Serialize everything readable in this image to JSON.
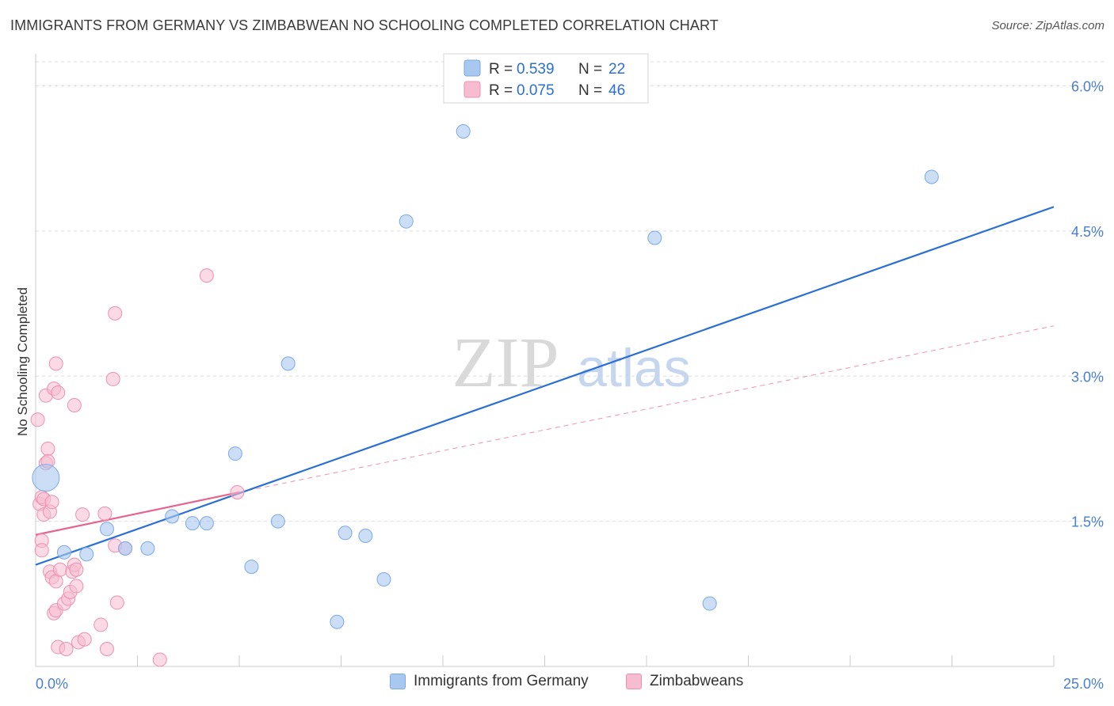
{
  "header": {
    "title": "IMMIGRANTS FROM GERMANY VS ZIMBABWEAN NO SCHOOLING COMPLETED CORRELATION CHART",
    "source": "Source: ZipAtlas.com"
  },
  "watermark": {
    "zip": "ZIP",
    "atlas": "atlas"
  },
  "colors": {
    "blue_fill": "#a9c8f0",
    "blue_stroke": "#7aaae6",
    "blue_line": "#2a6fd4",
    "pink_fill": "#f7bcd0",
    "pink_stroke": "#ee8fb0",
    "pink_line": "#e5658f",
    "axis_label": "#4a7fd0",
    "grid": "#dddddd"
  },
  "legend": {
    "rows": [
      {
        "r_label": "R = ",
        "r_value": "0.539",
        "n_label": "N = ",
        "n_value": "22"
      },
      {
        "r_label": "R = ",
        "r_value": "0.075",
        "n_label": "N = ",
        "n_value": "46"
      }
    ]
  },
  "chart_data": {
    "type": "scatter",
    "title": "IMMIGRANTS FROM GERMANY VS ZIMBABWEAN NO SCHOOLING COMPLETED CORRELATION CHART",
    "xlabel": "",
    "ylabel": "No Schooling Completed",
    "xlim": [
      0,
      25
    ],
    "ylim": [
      0,
      6.25
    ],
    "x_tick_labels": [
      "0.0%",
      "25.0%"
    ],
    "y_ticks": [
      1.5,
      3.0,
      4.5,
      6.0
    ],
    "y_tick_labels": [
      "1.5%",
      "3.0%",
      "4.5%",
      "6.0%"
    ],
    "series": [
      {
        "name": "Immigrants from Germany",
        "color": "blue",
        "R": 0.539,
        "N": 22,
        "trend": {
          "x0": 0,
          "y0": 1.05,
          "x1": 25,
          "y1": 4.75
        },
        "points": [
          [
            0.25,
            1.95,
            "large"
          ],
          [
            0.7,
            1.18
          ],
          [
            1.25,
            1.16
          ],
          [
            1.75,
            1.42
          ],
          [
            2.2,
            1.22
          ],
          [
            2.75,
            1.22
          ],
          [
            3.35,
            1.55
          ],
          [
            3.85,
            1.48
          ],
          [
            4.2,
            1.48
          ],
          [
            4.9,
            2.2
          ],
          [
            5.3,
            1.03
          ],
          [
            5.95,
            1.5
          ],
          [
            6.2,
            3.13
          ],
          [
            7.4,
            0.46
          ],
          [
            7.6,
            1.38
          ],
          [
            8.1,
            1.35
          ],
          [
            8.55,
            0.9
          ],
          [
            9.1,
            4.6
          ],
          [
            10.5,
            5.53
          ],
          [
            15.2,
            4.43
          ],
          [
            16.55,
            0.65
          ],
          [
            22.0,
            5.06
          ]
        ]
      },
      {
        "name": "Zimbabweans",
        "color": "pink",
        "R": 0.075,
        "N": 46,
        "trend_solid": {
          "x0": 0,
          "y0": 1.36,
          "x1": 5.0,
          "y1": 1.8
        },
        "trend_dashed": {
          "x0": 5.0,
          "y0": 1.8,
          "x1": 25,
          "y1": 3.52
        },
        "points": [
          [
            0.05,
            2.55
          ],
          [
            0.1,
            1.68
          ],
          [
            0.15,
            1.3
          ],
          [
            0.15,
            1.2
          ],
          [
            0.15,
            1.75
          ],
          [
            0.2,
            1.73
          ],
          [
            0.2,
            1.57
          ],
          [
            0.25,
            2.8
          ],
          [
            0.25,
            2.1
          ],
          [
            0.3,
            2.25
          ],
          [
            0.3,
            2.12
          ],
          [
            0.35,
            1.6
          ],
          [
            0.35,
            0.98
          ],
          [
            0.4,
            1.7
          ],
          [
            0.4,
            0.92
          ],
          [
            0.45,
            2.87
          ],
          [
            0.45,
            0.55
          ],
          [
            0.5,
            3.13
          ],
          [
            0.5,
            0.58
          ],
          [
            0.5,
            0.88
          ],
          [
            0.55,
            2.83
          ],
          [
            0.55,
            0.2
          ],
          [
            0.6,
            1.0
          ],
          [
            0.7,
            0.65
          ],
          [
            0.75,
            0.18
          ],
          [
            0.8,
            0.7
          ],
          [
            0.85,
            0.77
          ],
          [
            0.9,
            0.98
          ],
          [
            0.95,
            1.05
          ],
          [
            0.95,
            2.7
          ],
          [
            1.0,
            1.0
          ],
          [
            1.0,
            0.83
          ],
          [
            1.05,
            0.25
          ],
          [
            1.15,
            1.57
          ],
          [
            1.2,
            0.28
          ],
          [
            1.6,
            0.43
          ],
          [
            1.7,
            1.58
          ],
          [
            1.75,
            0.18
          ],
          [
            1.9,
            2.97
          ],
          [
            1.95,
            3.65
          ],
          [
            1.95,
            1.25
          ],
          [
            2.0,
            0.66
          ],
          [
            2.2,
            1.22
          ],
          [
            3.05,
            0.07
          ],
          [
            4.2,
            4.04
          ],
          [
            4.95,
            1.8
          ]
        ]
      }
    ]
  }
}
